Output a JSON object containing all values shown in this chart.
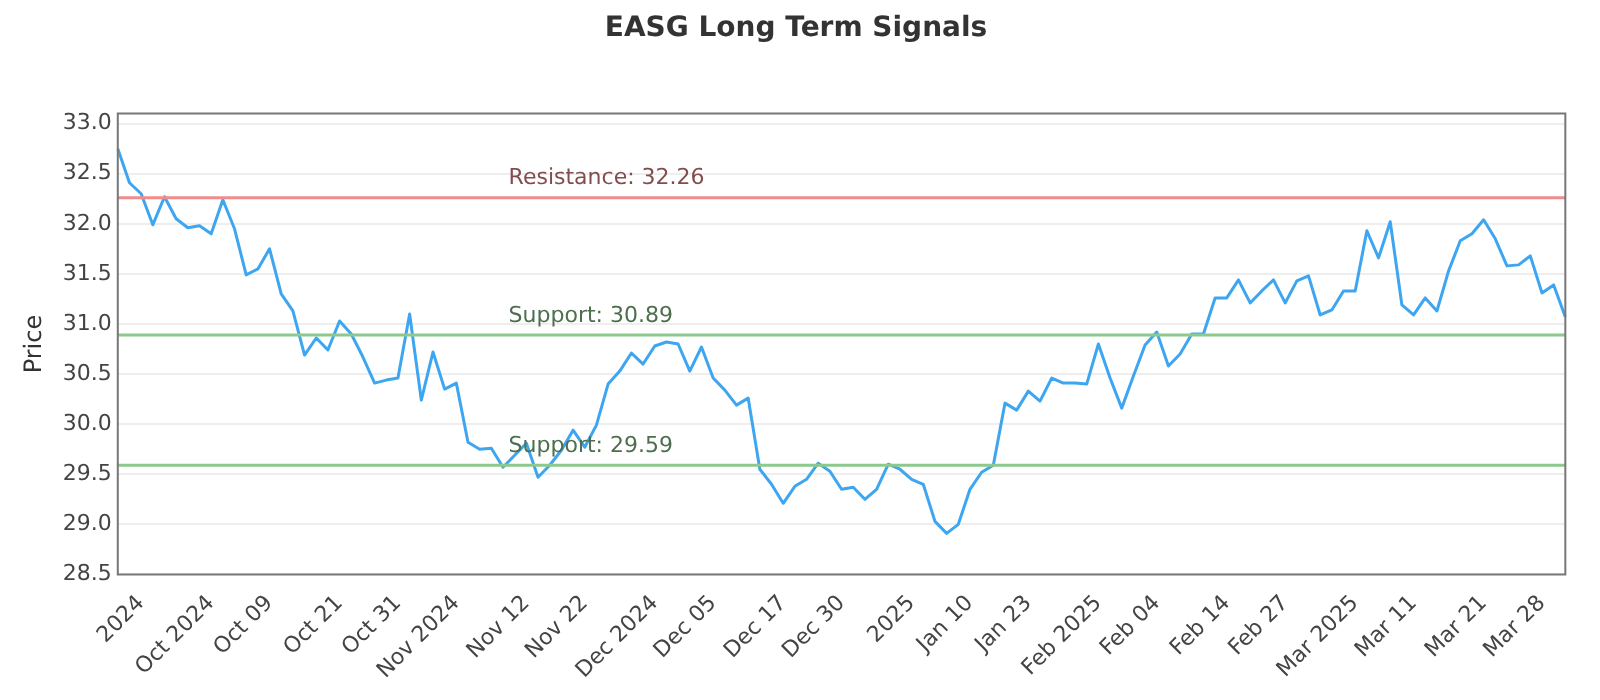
{
  "chart_data": {
    "type": "line",
    "title": "EASG Long Term Signals",
    "ylabel": "Price",
    "categories": [
      null,
      null,
      "2024",
      null,
      null,
      null,
      null,
      null,
      "Oct 2024",
      null,
      null,
      null,
      null,
      "Oct 09",
      null,
      null,
      null,
      null,
      null,
      "Oct 21",
      null,
      null,
      null,
      null,
      "Oct 31",
      null,
      null,
      null,
      null,
      "Nov 2024",
      null,
      null,
      null,
      null,
      null,
      "Nov 12",
      null,
      null,
      null,
      null,
      "Nov 22",
      null,
      null,
      null,
      null,
      null,
      "Dec 2024",
      null,
      null,
      null,
      null,
      "Dec 05",
      null,
      null,
      null,
      null,
      null,
      "Dec 17",
      null,
      null,
      null,
      null,
      "Dec 30",
      null,
      null,
      null,
      null,
      null,
      "2025",
      null,
      null,
      null,
      null,
      "Jan 10",
      null,
      null,
      null,
      null,
      "Jan 23",
      null,
      null,
      null,
      null,
      null,
      "Feb 2025",
      null,
      null,
      null,
      null,
      "Feb 04",
      null,
      null,
      null,
      null,
      null,
      "Feb 14",
      null,
      null,
      null,
      null,
      "Feb 27",
      null,
      null,
      null,
      null,
      null,
      "Mar 2025",
      null,
      null,
      null,
      null,
      "Mar 11",
      null,
      null,
      null,
      null,
      null,
      "Mar 21",
      null,
      null,
      null,
      null,
      "Mar 28",
      null,
      null
    ],
    "series": [
      {
        "color": "#3ea6f0",
        "values": [
          32.75,
          32.41,
          32.3,
          31.99,
          32.27,
          32.05,
          31.96,
          31.98,
          31.9,
          32.24,
          31.95,
          31.49,
          31.55,
          31.75,
          31.3,
          31.13,
          30.69,
          30.86,
          30.74,
          31.03,
          30.9,
          30.67,
          30.41,
          30.44,
          30.46,
          31.1,
          30.24,
          30.72,
          30.35,
          30.41,
          29.82,
          29.75,
          29.76,
          29.57,
          29.69,
          29.81,
          29.47,
          29.59,
          29.74,
          29.94,
          29.77,
          29.99,
          30.4,
          30.53,
          30.71,
          30.6,
          30.78,
          30.82,
          30.8,
          30.53,
          30.77,
          30.46,
          30.34,
          30.19,
          30.26,
          29.55,
          29.4,
          29.21,
          29.38,
          29.45,
          29.61,
          29.53,
          29.35,
          29.37,
          29.25,
          29.35,
          29.6,
          29.55,
          29.45,
          29.4,
          29.03,
          28.91,
          29.0,
          29.35,
          29.52,
          29.59,
          30.21,
          30.14,
          30.33,
          30.23,
          30.46,
          30.41,
          30.41,
          30.4,
          30.8,
          30.46,
          30.16,
          30.48,
          30.79,
          30.92,
          30.58,
          30.7,
          30.9,
          30.9,
          31.26,
          31.26,
          31.44,
          31.21,
          31.33,
          31.44,
          31.21,
          31.43,
          31.48,
          31.09,
          31.14,
          31.33,
          31.33,
          31.93,
          31.66,
          32.02,
          31.19,
          31.09,
          31.26,
          31.13,
          31.53,
          31.83,
          31.9,
          32.04,
          31.85,
          31.58,
          31.59,
          31.68,
          31.31,
          31.39,
          31.07
        ]
      }
    ],
    "ylim": [
      28.5,
      33.1
    ],
    "yticks": [
      28.5,
      {
        "value": 29,
        "label": "29.0"
      },
      29.5,
      {
        "value": 30,
        "label": "30.0"
      },
      30.5,
      {
        "value": 31,
        "label": "31.0"
      },
      31.5,
      {
        "value": 32,
        "label": "32.0"
      },
      32.5,
      {
        "value": 33,
        "label": "33.0"
      }
    ],
    "ref_lines": [
      {
        "axis": "y",
        "value": 32.26,
        "label": "Resistance: 32.26",
        "color": "#f08c8c"
      },
      {
        "axis": "y",
        "value": 30.89,
        "label": "Support: 30.89",
        "color": "#8cc98c"
      },
      {
        "axis": "y",
        "value": 29.59,
        "label": "Support: 29.59",
        "color": "#8cc98c"
      }
    ],
    "grid": "y",
    "legend": false,
    "marker": "none",
    "line_style": "solid"
  }
}
